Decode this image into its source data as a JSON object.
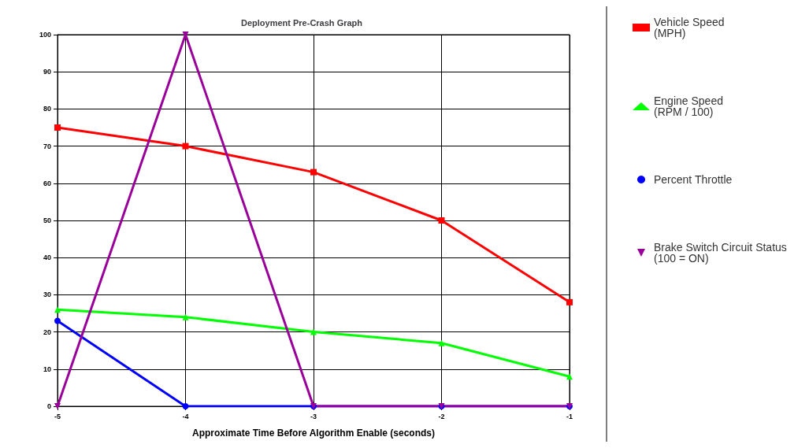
{
  "chart_data": {
    "type": "line",
    "title": "Deployment Pre-Crash Graph",
    "xlabel": "Approximate Time Before Algorithm Enable (seconds)",
    "x": [
      -5,
      -4,
      -3,
      -2,
      -1
    ],
    "xlim": [
      -5,
      -1
    ],
    "xticks": [
      -5,
      -4,
      -3,
      -2,
      -1
    ],
    "ylim": [
      0,
      100
    ],
    "yticks": [
      0,
      10,
      20,
      30,
      40,
      50,
      60,
      70,
      80,
      90,
      100
    ],
    "grid": true,
    "legend": "right",
    "series": [
      {
        "name": "Vehicle Speed\n(MPH)",
        "color": "#ff0000",
        "marker": "square",
        "values": [
          75,
          70,
          63,
          50,
          28
        ]
      },
      {
        "name": "Engine Speed\n(RPM / 100)",
        "color": "#00ff00",
        "marker": "triangle",
        "values": [
          26,
          24,
          20,
          17,
          8
        ]
      },
      {
        "name": "Percent Throttle",
        "color": "#0000ff",
        "marker": "circle",
        "values": [
          23,
          0,
          0,
          0,
          0
        ]
      },
      {
        "name": "Brake Switch Circuit Status\n(100 = ON)",
        "color": "#990099",
        "marker": "triangle-down",
        "values": [
          0,
          100,
          0,
          0,
          0
        ]
      }
    ]
  }
}
